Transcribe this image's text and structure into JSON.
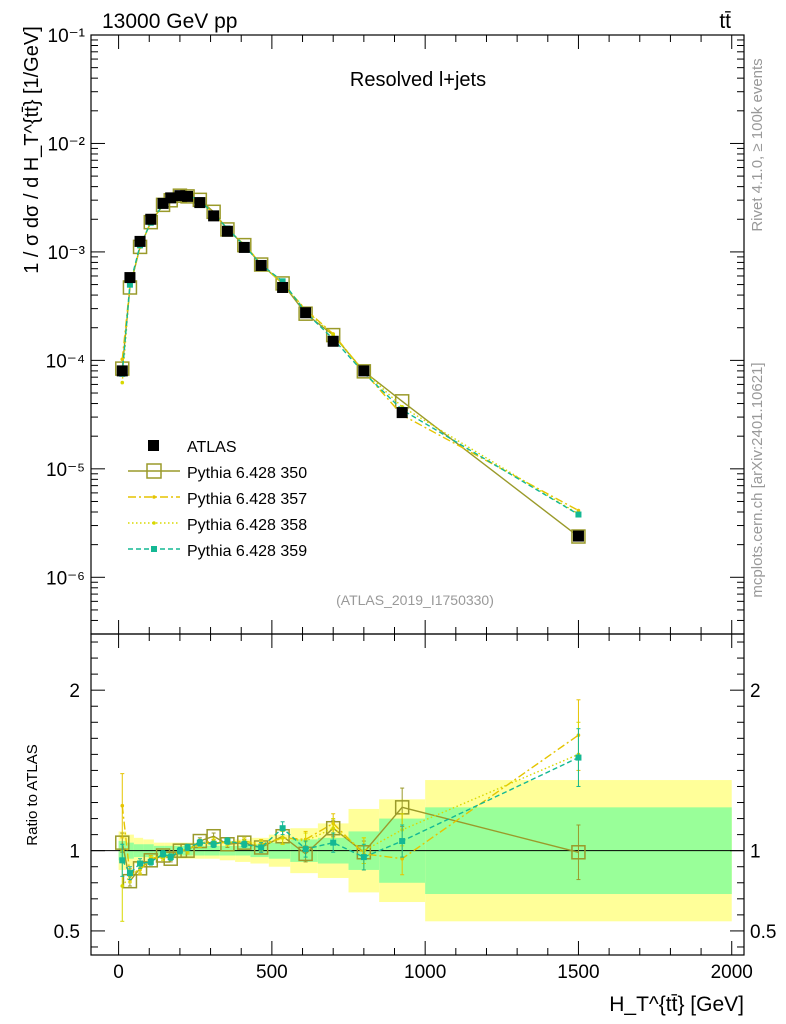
{
  "header": {
    "left": "13000 GeV pp",
    "right": "tt̄"
  },
  "side_text": {
    "rivet": "Rivet 4.1.0, ≥ 100k events",
    "mcplots": "mcplots.cern.ch [arXiv:2401.10621]"
  },
  "colors": {
    "data": "#000000",
    "p350": "#9a9a2a",
    "p357": "#e5c400",
    "p358": "#d8d800",
    "p359": "#14b894",
    "band_yellow": "#ffff99",
    "band_green": "#99ff99"
  },
  "chart_data": {
    "type": "scatter",
    "title": "Resolved l+jets",
    "analysis": "(ATLAS_2019_I1750330)",
    "xlabel": "H_T^{tt̄} [GeV]",
    "ylabel": "1 / σ dσ / d H_T^{tt̄} [1/GeV]",
    "ratio_ylabel": "Ratio to ATLAS",
    "xlim": [
      -90,
      2040
    ],
    "ylim_main": [
      3e-07,
      0.1
    ],
    "ylim_ratio": [
      0.35,
      2.35
    ],
    "x_ticks": [
      0,
      500,
      1000,
      1500,
      2000
    ],
    "main_tick_labels": [
      "10⁻¹",
      "10⁻²",
      "10⁻³",
      "10⁻⁴",
      "10⁻⁵",
      "10⁻⁶"
    ],
    "ratio_ticks": [
      0.5,
      1,
      2
    ],
    "legend": [
      {
        "key": "ATLAS",
        "label": "ATLAS"
      },
      {
        "key": "p350",
        "label": "Pythia 6.428 350"
      },
      {
        "key": "p357",
        "label": "Pythia 6.428 357"
      },
      {
        "key": "p358",
        "label": "Pythia 6.428 358"
      },
      {
        "key": "p359",
        "label": "Pythia 6.428 359"
      }
    ],
    "bins": [
      [
        0,
        25
      ],
      [
        25,
        50
      ],
      [
        50,
        80
      ],
      [
        80,
        115
      ],
      [
        115,
        150
      ],
      [
        150,
        180
      ],
      [
        180,
        210
      ],
      [
        210,
        240
      ],
      [
        240,
        280
      ],
      [
        280,
        330
      ],
      [
        330,
        380
      ],
      [
        380,
        430
      ],
      [
        430,
        490
      ],
      [
        490,
        560
      ],
      [
        560,
        650
      ],
      [
        650,
        750
      ],
      [
        750,
        850
      ],
      [
        850,
        1000
      ],
      [
        1000,
        2000
      ]
    ],
    "x": [
      12,
      37,
      70,
      105,
      145,
      170,
      200,
      225,
      265,
      310,
      355,
      410,
      465,
      535,
      610,
      700,
      800,
      925,
      1500
    ],
    "atlas": [
      8e-05,
      0.00058,
      0.00125,
      0.002,
      0.0028,
      0.00315,
      0.0033,
      0.00325,
      0.00285,
      0.00215,
      0.00155,
      0.0011,
      0.00075,
      0.00047,
      0.000275,
      0.00015,
      8e-05,
      3.3e-05,
      2.4e-06
    ],
    "band_inner": [
      0.06,
      0.05,
      0.04,
      0.04,
      0.03,
      0.03,
      0.03,
      0.03,
      0.03,
      0.03,
      0.03,
      0.03,
      0.04,
      0.05,
      0.07,
      0.08,
      0.12,
      0.2,
      0.27
    ],
    "band_outer": [
      0.12,
      0.1,
      0.08,
      0.07,
      0.05,
      0.05,
      0.05,
      0.05,
      0.05,
      0.05,
      0.06,
      0.07,
      0.08,
      0.1,
      0.14,
      0.17,
      0.26,
      0.32,
      0.44
    ],
    "series": [
      {
        "name": "Pythia 6.428 350",
        "key": "p350",
        "ratio": [
          1.05,
          0.81,
          0.89,
          0.94,
          0.97,
          0.95,
          1.0,
          1.0,
          1.06,
          1.09,
          1.04,
          1.05,
          1.02,
          1.09,
          0.98,
          1.14,
          0.99,
          1.27,
          0.99
        ],
        "err": [
          0.06,
          0.03,
          0.03,
          0.02,
          0.02,
          0.02,
          0.02,
          0.02,
          0.02,
          0.02,
          0.02,
          0.02,
          0.03,
          0.04,
          0.05,
          0.05,
          0.07,
          0.12,
          0.17
        ]
      },
      {
        "name": "Pythia 6.428 357",
        "key": "p357",
        "ratio": [
          1.28,
          0.85,
          0.88,
          0.95,
          0.97,
          0.96,
          1.0,
          1.01,
          1.04,
          1.05,
          1.05,
          1.06,
          1.04,
          1.08,
          1.07,
          1.17,
          0.98,
          0.95,
          1.72
        ],
        "err": [
          0.2,
          0.04,
          0.03,
          0.02,
          0.02,
          0.02,
          0.02,
          0.02,
          0.02,
          0.02,
          0.02,
          0.02,
          0.03,
          0.04,
          0.05,
          0.06,
          0.1,
          0.1,
          0.22
        ]
      },
      {
        "name": "Pythia 6.428 358",
        "key": "p358",
        "ratio": [
          0.78,
          0.84,
          0.89,
          0.94,
          0.96,
          0.96,
          1.0,
          1.0,
          1.05,
          1.06,
          1.05,
          1.06,
          1.03,
          1.08,
          1.06,
          1.14,
          1.0,
          1.13,
          1.6
        ],
        "err": [
          0.22,
          0.04,
          0.03,
          0.02,
          0.02,
          0.02,
          0.02,
          0.02,
          0.02,
          0.02,
          0.02,
          0.02,
          0.03,
          0.04,
          0.05,
          0.06,
          0.08,
          0.1,
          0.2
        ]
      },
      {
        "name": "Pythia 6.428 359",
        "key": "p359",
        "ratio": [
          0.94,
          0.86,
          0.92,
          0.93,
          0.98,
          0.96,
          1.0,
          1.02,
          1.05,
          1.04,
          1.06,
          1.04,
          1.02,
          1.14,
          1.01,
          1.05,
          0.96,
          1.06,
          1.58
        ],
        "err": [
          0.1,
          0.04,
          0.03,
          0.02,
          0.02,
          0.02,
          0.02,
          0.02,
          0.02,
          0.02,
          0.02,
          0.02,
          0.03,
          0.04,
          0.05,
          0.06,
          0.08,
          0.1,
          0.18
        ]
      }
    ]
  }
}
